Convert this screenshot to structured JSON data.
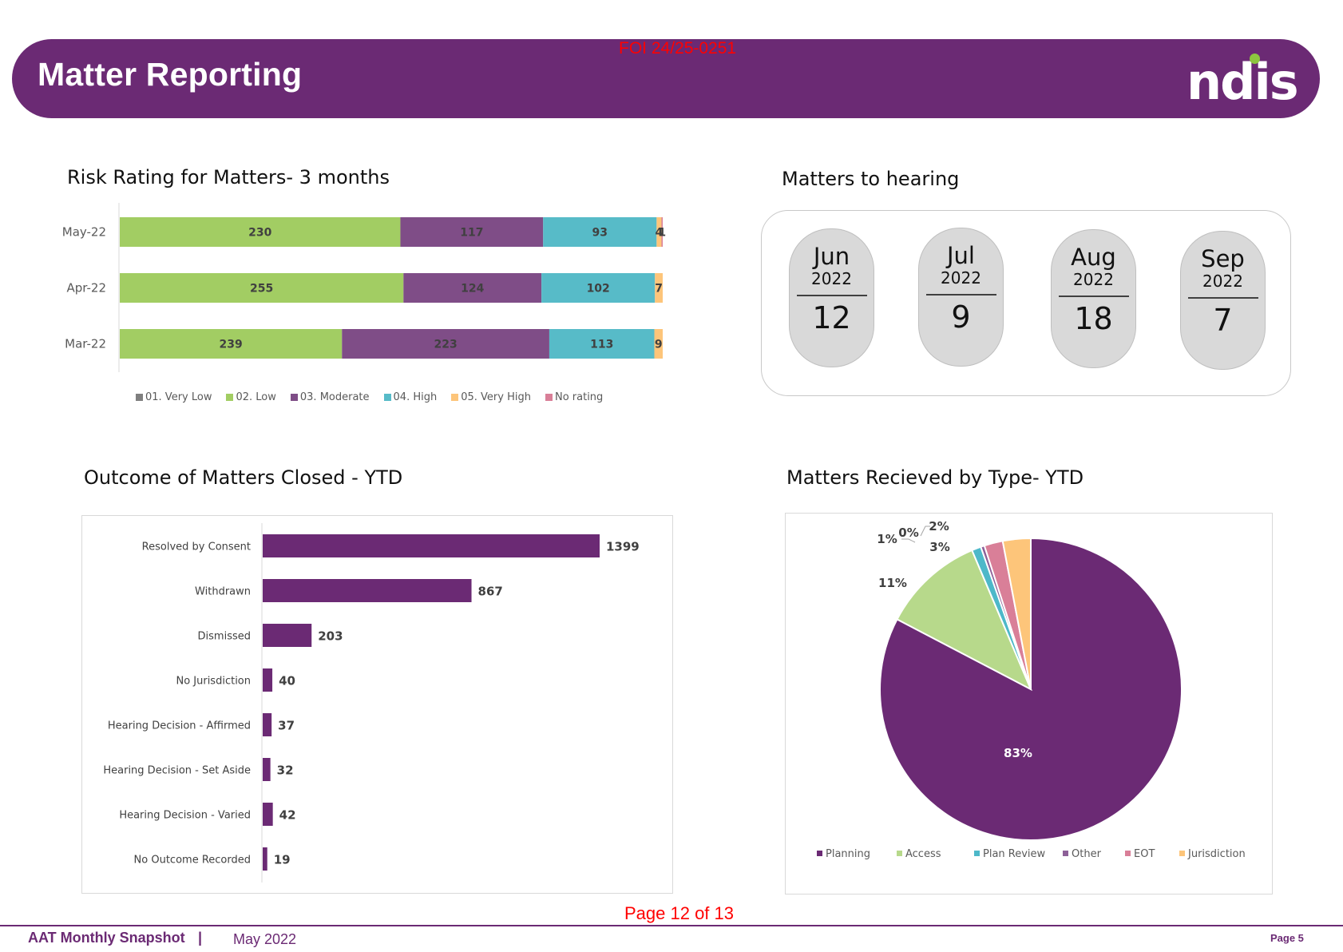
{
  "header": {
    "title": "Matter Reporting",
    "foi_stamp": "FOI 24/25-0251",
    "logo": "ndis",
    "brand_color": "#6b2a74",
    "logo_dot_color": "#8dc63f"
  },
  "risk_section": {
    "title": "Risk Rating for Matters- 3 months"
  },
  "hearing_section": {
    "title": "Matters to hearing",
    "items": [
      {
        "month": "Jun",
        "year": "2022",
        "count": "12"
      },
      {
        "month": "Jul",
        "year": "2022",
        "count": "9"
      },
      {
        "month": "Aug",
        "year": "2022",
        "count": "18"
      },
      {
        "month": "Sep",
        "year": "2022",
        "count": "7"
      }
    ]
  },
  "outcome_section": {
    "title": "Outcome of Matters Closed - YTD"
  },
  "pie_section": {
    "title": "Matters Recieved by Type- YTD"
  },
  "footer": {
    "page_of": "Page 12 of 13",
    "report_name": "AAT Monthly Snapshot",
    "separator": "|",
    "period": "May 2022",
    "page": "Page 5"
  },
  "chart_data": [
    {
      "type": "bar",
      "orientation": "horizontal",
      "stacked": "percent",
      "title": "Risk Rating for Matters- 3 months",
      "categories": [
        "May-22",
        "Apr-22",
        "Mar-22"
      ],
      "series": [
        {
          "name": "01. Very Low",
          "color": "#7f7f7f",
          "values": [
            0,
            0,
            0
          ]
        },
        {
          "name": "02. Low",
          "color": "#a2cd63",
          "values": [
            230,
            255,
            239
          ]
        },
        {
          "name": "03. Moderate",
          "color": "#7f4d87",
          "values": [
            117,
            124,
            223
          ]
        },
        {
          "name": "04. High",
          "color": "#57bbc8",
          "values": [
            93,
            102,
            113
          ]
        },
        {
          "name": "05. Very High",
          "color": "#fdc57a",
          "values": [
            4,
            7,
            9
          ]
        },
        {
          "name": "No rating",
          "color": "#d97f98",
          "values": [
            1,
            0,
            0
          ]
        }
      ],
      "legend": "bottom",
      "grid": false
    },
    {
      "type": "bar",
      "orientation": "horizontal",
      "title": "Outcome of Matters Closed - YTD",
      "categories": [
        "Resolved by Consent",
        "Withdrawn",
        "Dismissed",
        "No Jurisdiction",
        "Hearing Decision - Affirmed",
        "Hearing Decision - Set Aside",
        "Hearing Decision - Varied",
        "No Outcome Recorded"
      ],
      "values": [
        1399,
        867,
        203,
        40,
        37,
        32,
        42,
        19
      ],
      "color": "#6b2a74",
      "xlim": [
        0,
        1600
      ],
      "grid": false
    },
    {
      "type": "pie",
      "title": "Matters Recieved by Type- YTD",
      "labels": [
        "Planning",
        "Access",
        "Plan Review",
        "Other",
        "EOT",
        "Jurisdiction"
      ],
      "values": [
        83,
        11,
        1,
        0.4,
        2,
        3
      ],
      "value_labels": [
        "83%",
        "11%",
        "1%",
        "0%",
        "2%",
        "3%"
      ],
      "colors": [
        "#6b2a74",
        "#b7d98b",
        "#4db8c9",
        "#8d6098",
        "#d97f98",
        "#fdc57a"
      ],
      "legend": "bottom"
    }
  ]
}
